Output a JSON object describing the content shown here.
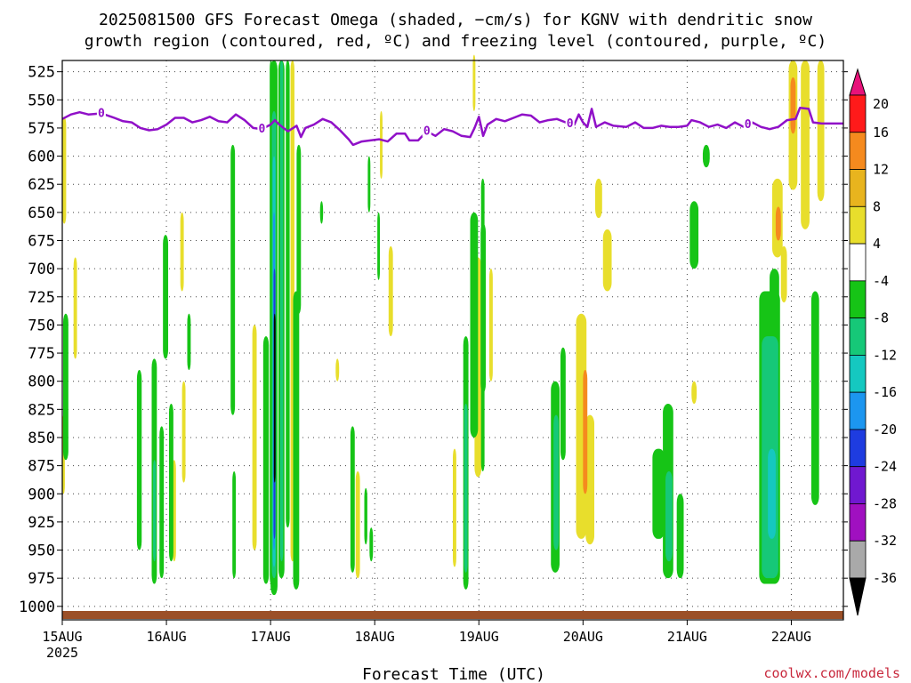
{
  "chart_data": {
    "type": "heatmap",
    "title_line1": "2025081500 GFS Forecast Omega (shaded, −cm/s) for KGNV with dendritic snow",
    "title_line2": "growth region (contoured, red, ºC) and freezing level (contoured, purple, ºC)",
    "xlabel": "Forecast Time (UTC)",
    "credit": "coolwx.com/models",
    "y_axis": {
      "unit": "hPa",
      "reversed": true,
      "range": [
        515,
        1012
      ],
      "ticks": [
        525,
        550,
        575,
        600,
        625,
        650,
        675,
        700,
        725,
        750,
        775,
        800,
        825,
        850,
        875,
        900,
        925,
        950,
        975,
        1000
      ]
    },
    "x_axis": {
      "range_hours": [
        0,
        180
      ],
      "ticks": [
        {
          "hour": 0,
          "label": "15AUG",
          "sublabel": "2025"
        },
        {
          "hour": 24,
          "label": "16AUG"
        },
        {
          "hour": 48,
          "label": "17AUG"
        },
        {
          "hour": 72,
          "label": "18AUG"
        },
        {
          "hour": 96,
          "label": "19AUG"
        },
        {
          "hour": 120,
          "label": "20AUG"
        },
        {
          "hour": 144,
          "label": "21AUG"
        },
        {
          "hour": 168,
          "label": "22AUG"
        }
      ]
    },
    "grid": true,
    "colorbar": {
      "position": "right",
      "levels": [
        20,
        16,
        12,
        8,
        4,
        -4,
        -8,
        -12,
        -16,
        -20,
        -24,
        -28,
        -32,
        -36
      ],
      "colors": [
        "#ff1a1a",
        "#f58a1e",
        "#e8b41e",
        "#e8de2c",
        "#ffffff",
        "#16c416",
        "#16c878",
        "#15c8c0",
        "#1c96f0",
        "#1e3ce0",
        "#7018d0",
        "#a010c0",
        "#a9a9a9"
      ],
      "top_arrow_color": "#e8127a",
      "bottom_arrow_color": "#000000"
    },
    "freezing_level": {
      "label": "0",
      "color": "#9010c8",
      "points": [
        [
          0,
          567
        ],
        [
          2,
          563
        ],
        [
          4,
          561
        ],
        [
          6,
          563
        ],
        [
          9,
          562
        ],
        [
          12,
          566
        ],
        [
          14,
          569
        ],
        [
          16,
          570
        ],
        [
          18,
          575
        ],
        [
          20,
          577
        ],
        [
          22,
          576
        ],
        [
          24,
          572
        ],
        [
          26,
          566
        ],
        [
          28,
          566
        ],
        [
          30,
          570
        ],
        [
          32,
          568
        ],
        [
          34,
          565
        ],
        [
          36,
          569
        ],
        [
          38,
          570
        ],
        [
          40,
          563
        ],
        [
          42,
          568
        ],
        [
          44,
          575
        ],
        [
          46,
          576
        ],
        [
          48,
          572
        ],
        [
          49,
          568
        ],
        [
          50,
          572
        ],
        [
          52,
          578
        ],
        [
          54,
          573
        ],
        [
          55,
          583
        ],
        [
          56,
          575
        ],
        [
          58,
          572
        ],
        [
          60,
          567
        ],
        [
          62,
          570
        ],
        [
          64,
          577
        ],
        [
          66,
          585
        ],
        [
          67,
          590
        ],
        [
          69,
          587
        ],
        [
          71,
          586
        ],
        [
          73,
          585
        ],
        [
          75,
          587
        ],
        [
          77,
          580
        ],
        [
          79,
          580
        ],
        [
          80,
          586
        ],
        [
          82,
          586
        ],
        [
          84,
          578
        ],
        [
          86,
          582
        ],
        [
          88,
          576
        ],
        [
          90,
          578
        ],
        [
          92,
          582
        ],
        [
          94,
          583
        ],
        [
          95,
          575
        ],
        [
          96,
          565
        ],
        [
          97,
          582
        ],
        [
          98,
          572
        ],
        [
          100,
          567
        ],
        [
          102,
          569
        ],
        [
          104,
          566
        ],
        [
          106,
          563
        ],
        [
          108,
          564
        ],
        [
          110,
          570
        ],
        [
          112,
          568
        ],
        [
          114,
          567
        ],
        [
          116,
          570
        ],
        [
          118,
          572
        ],
        [
          119,
          563
        ],
        [
          120,
          570
        ],
        [
          121,
          574
        ],
        [
          122,
          558
        ],
        [
          123,
          574
        ],
        [
          125,
          570
        ],
        [
          127,
          573
        ],
        [
          130,
          574
        ],
        [
          132,
          570
        ],
        [
          134,
          575
        ],
        [
          136,
          575
        ],
        [
          138,
          573
        ],
        [
          140,
          574
        ],
        [
          142,
          574
        ],
        [
          144,
          573
        ],
        [
          145,
          568
        ],
        [
          147,
          570
        ],
        [
          149,
          574
        ],
        [
          151,
          572
        ],
        [
          153,
          575
        ],
        [
          155,
          570
        ],
        [
          157,
          574
        ],
        [
          159,
          570
        ],
        [
          161,
          574
        ],
        [
          163,
          576
        ],
        [
          165,
          574
        ],
        [
          167,
          568
        ],
        [
          169,
          567
        ],
        [
          170,
          557
        ],
        [
          172,
          558
        ],
        [
          173,
          570
        ],
        [
          175,
          571
        ],
        [
          180,
          571
        ]
      ],
      "label_hours": [
        9,
        46,
        84,
        117,
        158
      ]
    },
    "shaded_regions": [
      {
        "h0": 47.8,
        "h1": 48.4,
        "p0": 515,
        "p1": 980,
        "level": -8
      },
      {
        "h0": 48.0,
        "h1": 49.6,
        "p0": 515,
        "p1": 990,
        "level": -8
      },
      {
        "h0": 48.3,
        "h1": 49.3,
        "p0": 560,
        "p1": 975,
        "level": -12
      },
      {
        "h0": 48.5,
        "h1": 49.1,
        "p0": 600,
        "p1": 965,
        "level": -16
      },
      {
        "h0": 48.6,
        "h1": 49.0,
        "p0": 650,
        "p1": 950,
        "level": -20
      },
      {
        "h0": 48.7,
        "h1": 48.95,
        "p0": 700,
        "p1": 940,
        "level": -24
      },
      {
        "h0": 48.75,
        "h1": 48.9,
        "p0": 740,
        "p1": 890,
        "level": -36
      },
      {
        "h0": 49.8,
        "h1": 51.2,
        "p0": 515,
        "p1": 975,
        "level": -8
      },
      {
        "h0": 50.2,
        "h1": 50.9,
        "p0": 515,
        "p1": 960,
        "level": -12
      },
      {
        "h0": 51.5,
        "h1": 52.4,
        "p0": 515,
        "p1": 930,
        "level": -8
      },
      {
        "h0": 52.6,
        "h1": 53.5,
        "p0": 515,
        "p1": 960,
        "level": 4
      },
      {
        "h0": 53.2,
        "h1": 54.6,
        "p0": 720,
        "p1": 985,
        "level": -8
      },
      {
        "h0": 54.0,
        "h1": 55.0,
        "p0": 590,
        "p1": 740,
        "level": -8
      },
      {
        "h0": 46.3,
        "h1": 47.6,
        "p0": 760,
        "p1": 980,
        "level": -8
      },
      {
        "h0": 43.8,
        "h1": 44.8,
        "p0": 750,
        "p1": 950,
        "level": 4
      },
      {
        "h0": 38.8,
        "h1": 39.8,
        "p0": 590,
        "p1": 830,
        "level": -8
      },
      {
        "h0": 39.2,
        "h1": 40.0,
        "p0": 880,
        "p1": 975,
        "level": -8
      },
      {
        "h0": 0.0,
        "h1": 0.9,
        "p0": 565,
        "p1": 660,
        "level": 4
      },
      {
        "h0": 0.2,
        "h1": 1.4,
        "p0": 740,
        "p1": 870,
        "level": -8
      },
      {
        "h0": 0.0,
        "h1": 0.6,
        "p0": 830,
        "p1": 900,
        "level": 4
      },
      {
        "h0": 2.6,
        "h1": 3.4,
        "p0": 690,
        "p1": 780,
        "level": 4
      },
      {
        "h0": 17.2,
        "h1": 18.3,
        "p0": 790,
        "p1": 950,
        "level": -8
      },
      {
        "h0": 20.6,
        "h1": 21.8,
        "p0": 780,
        "p1": 980,
        "level": -8
      },
      {
        "h0": 20.9,
        "h1": 21.6,
        "p0": 870,
        "p1": 960,
        "level": -12
      },
      {
        "h0": 22.4,
        "h1": 23.4,
        "p0": 840,
        "p1": 975,
        "level": -8
      },
      {
        "h0": 23.2,
        "h1": 24.4,
        "p0": 670,
        "p1": 780,
        "level": -8
      },
      {
        "h0": 24.6,
        "h1": 25.6,
        "p0": 820,
        "p1": 960,
        "level": -8
      },
      {
        "h0": 25.4,
        "h1": 26.2,
        "p0": 870,
        "p1": 960,
        "level": 4
      },
      {
        "h0": 27.2,
        "h1": 28.0,
        "p0": 650,
        "p1": 720,
        "level": 4
      },
      {
        "h0": 28.8,
        "h1": 29.6,
        "p0": 740,
        "p1": 790,
        "level": -8
      },
      {
        "h0": 27.6,
        "h1": 28.4,
        "p0": 800,
        "p1": 890,
        "level": 4
      },
      {
        "h0": 59.4,
        "h1": 60.1,
        "p0": 640,
        "p1": 660,
        "level": -8
      },
      {
        "h0": 72.6,
        "h1": 73.2,
        "p0": 650,
        "p1": 710,
        "level": -8
      },
      {
        "h0": 75.2,
        "h1": 76.2,
        "p0": 680,
        "p1": 760,
        "level": 4
      },
      {
        "h0": 66.4,
        "h1": 67.4,
        "p0": 840,
        "p1": 970,
        "level": -8
      },
      {
        "h0": 67.6,
        "h1": 68.6,
        "p0": 880,
        "p1": 975,
        "level": 4
      },
      {
        "h0": 69.6,
        "h1": 70.3,
        "p0": 895,
        "p1": 945,
        "level": -8
      },
      {
        "h0": 70.8,
        "h1": 71.6,
        "p0": 930,
        "p1": 960,
        "level": -8
      },
      {
        "h0": 63.0,
        "h1": 63.8,
        "p0": 780,
        "p1": 800,
        "level": 4
      },
      {
        "h0": 70.4,
        "h1": 71.0,
        "p0": 600,
        "p1": 650,
        "level": -8
      },
      {
        "h0": 73.2,
        "h1": 73.8,
        "p0": 560,
        "p1": 620,
        "level": 4
      },
      {
        "h0": 94.0,
        "h1": 95.8,
        "p0": 650,
        "p1": 850,
        "level": -8
      },
      {
        "h0": 92.4,
        "h1": 93.6,
        "p0": 760,
        "p1": 985,
        "level": -8
      },
      {
        "h0": 92.6,
        "h1": 93.4,
        "p0": 820,
        "p1": 970,
        "level": -12
      },
      {
        "h0": 90.0,
        "h1": 90.8,
        "p0": 860,
        "p1": 965,
        "level": 4
      },
      {
        "h0": 95.0,
        "h1": 96.6,
        "p0": 690,
        "p1": 885,
        "level": 4
      },
      {
        "h0": 96.4,
        "h1": 97.6,
        "p0": 660,
        "p1": 810,
        "level": -8
      },
      {
        "h0": 96.5,
        "h1": 97.3,
        "p0": 620,
        "p1": 880,
        "level": -8
      },
      {
        "h0": 98.4,
        "h1": 99.2,
        "p0": 700,
        "p1": 800,
        "level": 4
      },
      {
        "h0": 94.6,
        "h1": 95.2,
        "p0": 510,
        "p1": 560,
        "level": 4
      },
      {
        "h0": 112.6,
        "h1": 114.6,
        "p0": 800,
        "p1": 970,
        "level": -8
      },
      {
        "h0": 113.2,
        "h1": 114.4,
        "p0": 830,
        "p1": 950,
        "level": -12
      },
      {
        "h0": 114.8,
        "h1": 116.0,
        "p0": 770,
        "p1": 870,
        "level": -8
      },
      {
        "h0": 118.4,
        "h1": 120.8,
        "p0": 740,
        "p1": 940,
        "level": 4
      },
      {
        "h0": 120.0,
        "h1": 121.0,
        "p0": 790,
        "p1": 900,
        "level": 12
      },
      {
        "h0": 120.6,
        "h1": 122.6,
        "p0": 830,
        "p1": 945,
        "level": 4
      },
      {
        "h0": 122.8,
        "h1": 124.4,
        "p0": 620,
        "p1": 655,
        "level": 4
      },
      {
        "h0": 124.6,
        "h1": 126.6,
        "p0": 665,
        "p1": 720,
        "level": 4
      },
      {
        "h0": 136.0,
        "h1": 138.8,
        "p0": 860,
        "p1": 940,
        "level": -8
      },
      {
        "h0": 138.4,
        "h1": 140.8,
        "p0": 820,
        "p1": 975,
        "level": -8
      },
      {
        "h0": 139.0,
        "h1": 140.6,
        "p0": 880,
        "p1": 960,
        "level": -12
      },
      {
        "h0": 141.6,
        "h1": 143.2,
        "p0": 900,
        "p1": 975,
        "level": -8
      },
      {
        "h0": 145.0,
        "h1": 146.2,
        "p0": 800,
        "p1": 820,
        "level": 4
      },
      {
        "h0": 147.6,
        "h1": 149.2,
        "p0": 590,
        "p1": 610,
        "level": -8
      },
      {
        "h0": 144.6,
        "h1": 146.6,
        "p0": 640,
        "p1": 700,
        "level": -8
      },
      {
        "h0": 160.6,
        "h1": 165.4,
        "p0": 720,
        "p1": 980,
        "level": -8
      },
      {
        "h0": 161.2,
        "h1": 165.0,
        "p0": 760,
        "p1": 975,
        "level": -12
      },
      {
        "h0": 162.6,
        "h1": 164.4,
        "p0": 860,
        "p1": 940,
        "level": -16
      },
      {
        "h0": 163.0,
        "h1": 165.2,
        "p0": 700,
        "p1": 760,
        "level": -8
      },
      {
        "h0": 163.6,
        "h1": 166.0,
        "p0": 620,
        "p1": 690,
        "level": 4
      },
      {
        "h0": 164.4,
        "h1": 165.6,
        "p0": 645,
        "p1": 675,
        "level": 12
      },
      {
        "h0": 165.6,
        "h1": 167.0,
        "p0": 680,
        "p1": 730,
        "level": 4
      },
      {
        "h0": 167.4,
        "h1": 169.4,
        "p0": 515,
        "p1": 630,
        "level": 4
      },
      {
        "h0": 167.8,
        "h1": 169.0,
        "p0": 530,
        "p1": 580,
        "level": 12
      },
      {
        "h0": 170.2,
        "h1": 172.2,
        "p0": 515,
        "p1": 665,
        "level": 4
      },
      {
        "h0": 172.6,
        "h1": 174.4,
        "p0": 720,
        "p1": 910,
        "level": -8
      },
      {
        "h0": 174.0,
        "h1": 175.6,
        "p0": 515,
        "p1": 640,
        "level": 4
      }
    ],
    "ground_color": "#9b5028"
  }
}
